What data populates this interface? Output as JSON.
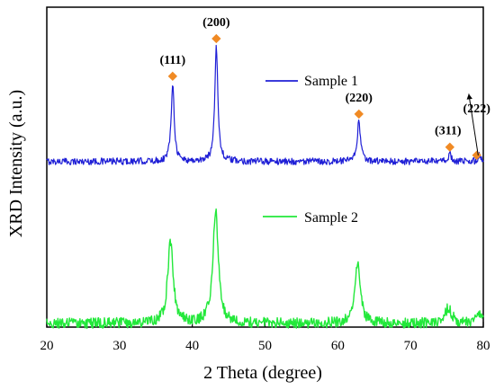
{
  "chart_data": {
    "type": "line",
    "title": "",
    "xlabel": "2 Theta (degree)",
    "ylabel": "XRD Intensity (a.u.)",
    "xlim": [
      20,
      80
    ],
    "x_ticks": [
      20,
      30,
      40,
      50,
      60,
      70,
      80
    ],
    "y_ticks_shown": false,
    "grid": false,
    "legend_placement": "inline",
    "colors": {
      "sample1": "#1f1fd6",
      "sample2": "#22e83a",
      "marker": "#f08a24",
      "axis": "#000000"
    },
    "series": [
      {
        "name": "Sample 1",
        "baseline": 2.2,
        "noise": 0.045,
        "peaks": [
          {
            "x": 37.3,
            "h": 1.05,
            "w": 0.25
          },
          {
            "x": 43.3,
            "h": 1.55,
            "w": 0.25
          },
          {
            "x": 62.9,
            "h": 0.55,
            "w": 0.25
          },
          {
            "x": 75.4,
            "h": 0.1,
            "w": 0.25
          },
          {
            "x": 79.5,
            "h": 0.08,
            "w": 0.25
          }
        ]
      },
      {
        "name": "Sample 2",
        "baseline": 0.05,
        "noise": 0.07,
        "peaks": [
          {
            "x": 37.0,
            "h": 1.08,
            "w": 0.45
          },
          {
            "x": 43.2,
            "h": 1.5,
            "w": 0.45
          },
          {
            "x": 62.7,
            "h": 0.8,
            "w": 0.45
          },
          {
            "x": 75.2,
            "h": 0.2,
            "w": 0.55
          },
          {
            "x": 79.3,
            "h": 0.12,
            "w": 0.55
          }
        ]
      }
    ],
    "annotations": [
      {
        "label": "(111)",
        "x": 37.3
      },
      {
        "label": "(200)",
        "x": 43.3
      },
      {
        "label": "(220)",
        "x": 62.9
      },
      {
        "label": "(311)",
        "x": 75.4
      },
      {
        "label": "(222)",
        "x": 79.5
      }
    ]
  }
}
